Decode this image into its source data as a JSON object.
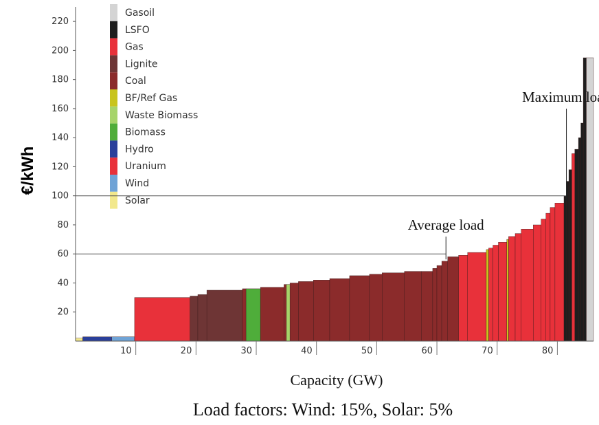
{
  "chart_data": {
    "type": "bar",
    "title": "",
    "ylabel": "€/kWh",
    "xlabel": "Capacity (GW)",
    "caption": "Load factors: Wind: 15%, Solar: 5%",
    "xlim": [
      0,
      86
    ],
    "ylim": [
      0,
      230
    ],
    "x_ticks": [
      10,
      20,
      30,
      40,
      50,
      60,
      70,
      80
    ],
    "y_ticks": [
      20,
      40,
      60,
      80,
      100,
      120,
      140,
      160,
      180,
      200,
      220
    ],
    "grid": false,
    "legend_position": "top-left",
    "legend": [
      {
        "label": "Gasoil",
        "color": "#d4d4d4"
      },
      {
        "label": "LSFO",
        "color": "#1e1e1e"
      },
      {
        "label": "Gas",
        "color": "#e8313a"
      },
      {
        "label": "Lignite",
        "color": "#6e3535"
      },
      {
        "label": "Coal",
        "color": "#8b2b2b"
      },
      {
        "label": "BF/Ref Gas",
        "color": "#c8c41c"
      },
      {
        "label": "Waste Biomass",
        "color": "#a6d46a"
      },
      {
        "label": "Biomass",
        "color": "#4fad3a"
      },
      {
        "label": "Hydro",
        "color": "#2a3f9a"
      },
      {
        "label": "Uranium",
        "color": "#e8313a"
      },
      {
        "label": "Wind",
        "color": "#6fa3d6"
      },
      {
        "label": "Solar",
        "color": "#f2e88c"
      }
    ],
    "annotations": [
      {
        "label": "Average load",
        "x": 61.5,
        "y": 60
      },
      {
        "label": "Maximum load",
        "x": 81.5,
        "y": 100
      }
    ],
    "series": [
      {
        "fuel": "Solar",
        "x0": 0,
        "x1": 1.2,
        "value": 2
      },
      {
        "fuel": "Hydro",
        "x0": 1.2,
        "x1": 6,
        "value": 3
      },
      {
        "fuel": "Wind",
        "x0": 6,
        "x1": 9.8,
        "value": 3
      },
      {
        "fuel": "Uranium",
        "x0": 9.8,
        "x1": 19,
        "value": 30
      },
      {
        "fuel": "Lignite",
        "x0": 19,
        "x1": 20.3,
        "value": 31
      },
      {
        "fuel": "Lignite",
        "x0": 20.3,
        "x1": 21.8,
        "value": 32
      },
      {
        "fuel": "Lignite",
        "x0": 21.8,
        "x1": 27.7,
        "value": 35
      },
      {
        "fuel": "Coal",
        "x0": 27.7,
        "x1": 28.3,
        "value": 36
      },
      {
        "fuel": "Biomass",
        "x0": 28.3,
        "x1": 30.7,
        "value": 36
      },
      {
        "fuel": "Coal",
        "x0": 30.7,
        "x1": 34.6,
        "value": 37
      },
      {
        "fuel": "Coal",
        "x0": 34.6,
        "x1": 35.0,
        "value": 39
      },
      {
        "fuel": "Waste Biomass",
        "x0": 35.0,
        "x1": 35.6,
        "value": 39
      },
      {
        "fuel": "Coal",
        "x0": 35.6,
        "x1": 37.0,
        "value": 40
      },
      {
        "fuel": "Coal",
        "x0": 37.0,
        "x1": 39.5,
        "value": 41
      },
      {
        "fuel": "Coal",
        "x0": 39.5,
        "x1": 42.2,
        "value": 42
      },
      {
        "fuel": "Coal",
        "x0": 42.2,
        "x1": 45.5,
        "value": 43
      },
      {
        "fuel": "Coal",
        "x0": 45.5,
        "x1": 48.8,
        "value": 45
      },
      {
        "fuel": "Coal",
        "x0": 48.8,
        "x1": 50.9,
        "value": 46
      },
      {
        "fuel": "Coal",
        "x0": 50.9,
        "x1": 54.6,
        "value": 47
      },
      {
        "fuel": "Coal",
        "x0": 54.6,
        "x1": 57.4,
        "value": 48
      },
      {
        "fuel": "Coal",
        "x0": 57.4,
        "x1": 59.3,
        "value": 48
      },
      {
        "fuel": "Coal",
        "x0": 59.3,
        "x1": 60.0,
        "value": 50
      },
      {
        "fuel": "Coal",
        "x0": 60.0,
        "x1": 60.8,
        "value": 52
      },
      {
        "fuel": "Coal",
        "x0": 60.8,
        "x1": 61.8,
        "value": 55
      },
      {
        "fuel": "Coal",
        "x0": 61.8,
        "x1": 63.6,
        "value": 58
      },
      {
        "fuel": "Gas",
        "x0": 63.6,
        "x1": 65.1,
        "value": 59
      },
      {
        "fuel": "Gas",
        "x0": 65.1,
        "x1": 68.2,
        "value": 61
      },
      {
        "fuel": "BF/Ref Gas",
        "x0": 68.2,
        "x1": 68.6,
        "value": 63
      },
      {
        "fuel": "Gas",
        "x0": 68.6,
        "x1": 69.3,
        "value": 64
      },
      {
        "fuel": "Gas",
        "x0": 69.3,
        "x1": 70.2,
        "value": 66
      },
      {
        "fuel": "Gas",
        "x0": 70.2,
        "x1": 71.6,
        "value": 68
      },
      {
        "fuel": "BF/Ref Gas",
        "x0": 71.6,
        "x1": 71.9,
        "value": 70
      },
      {
        "fuel": "Gas",
        "x0": 71.9,
        "x1": 73.0,
        "value": 72
      },
      {
        "fuel": "Gas",
        "x0": 73.0,
        "x1": 74.0,
        "value": 74
      },
      {
        "fuel": "Gas",
        "x0": 74.0,
        "x1": 76.0,
        "value": 77
      },
      {
        "fuel": "Gas",
        "x0": 76.0,
        "x1": 77.3,
        "value": 80
      },
      {
        "fuel": "Gas",
        "x0": 77.3,
        "x1": 78.1,
        "value": 84
      },
      {
        "fuel": "Gas",
        "x0": 78.1,
        "x1": 78.8,
        "value": 88
      },
      {
        "fuel": "Gas",
        "x0": 78.8,
        "x1": 79.6,
        "value": 92
      },
      {
        "fuel": "Gas",
        "x0": 79.6,
        "x1": 81.1,
        "value": 95
      },
      {
        "fuel": "LSFO",
        "x0": 81.1,
        "x1": 81.5,
        "value": 100
      },
      {
        "fuel": "LSFO",
        "x0": 81.5,
        "x1": 81.9,
        "value": 110
      },
      {
        "fuel": "LSFO",
        "x0": 81.9,
        "x1": 82.4,
        "value": 118
      },
      {
        "fuel": "Gas",
        "x0": 82.4,
        "x1": 82.9,
        "value": 129
      },
      {
        "fuel": "LSFO",
        "x0": 82.9,
        "x1": 83.5,
        "value": 132
      },
      {
        "fuel": "LSFO",
        "x0": 83.5,
        "x1": 83.9,
        "value": 140
      },
      {
        "fuel": "LSFO",
        "x0": 83.9,
        "x1": 84.3,
        "value": 150
      },
      {
        "fuel": "LSFO",
        "x0": 84.3,
        "x1": 84.8,
        "value": 195
      },
      {
        "fuel": "Gasoil",
        "x0": 84.8,
        "x1": 86.0,
        "value": 195
      }
    ]
  }
}
